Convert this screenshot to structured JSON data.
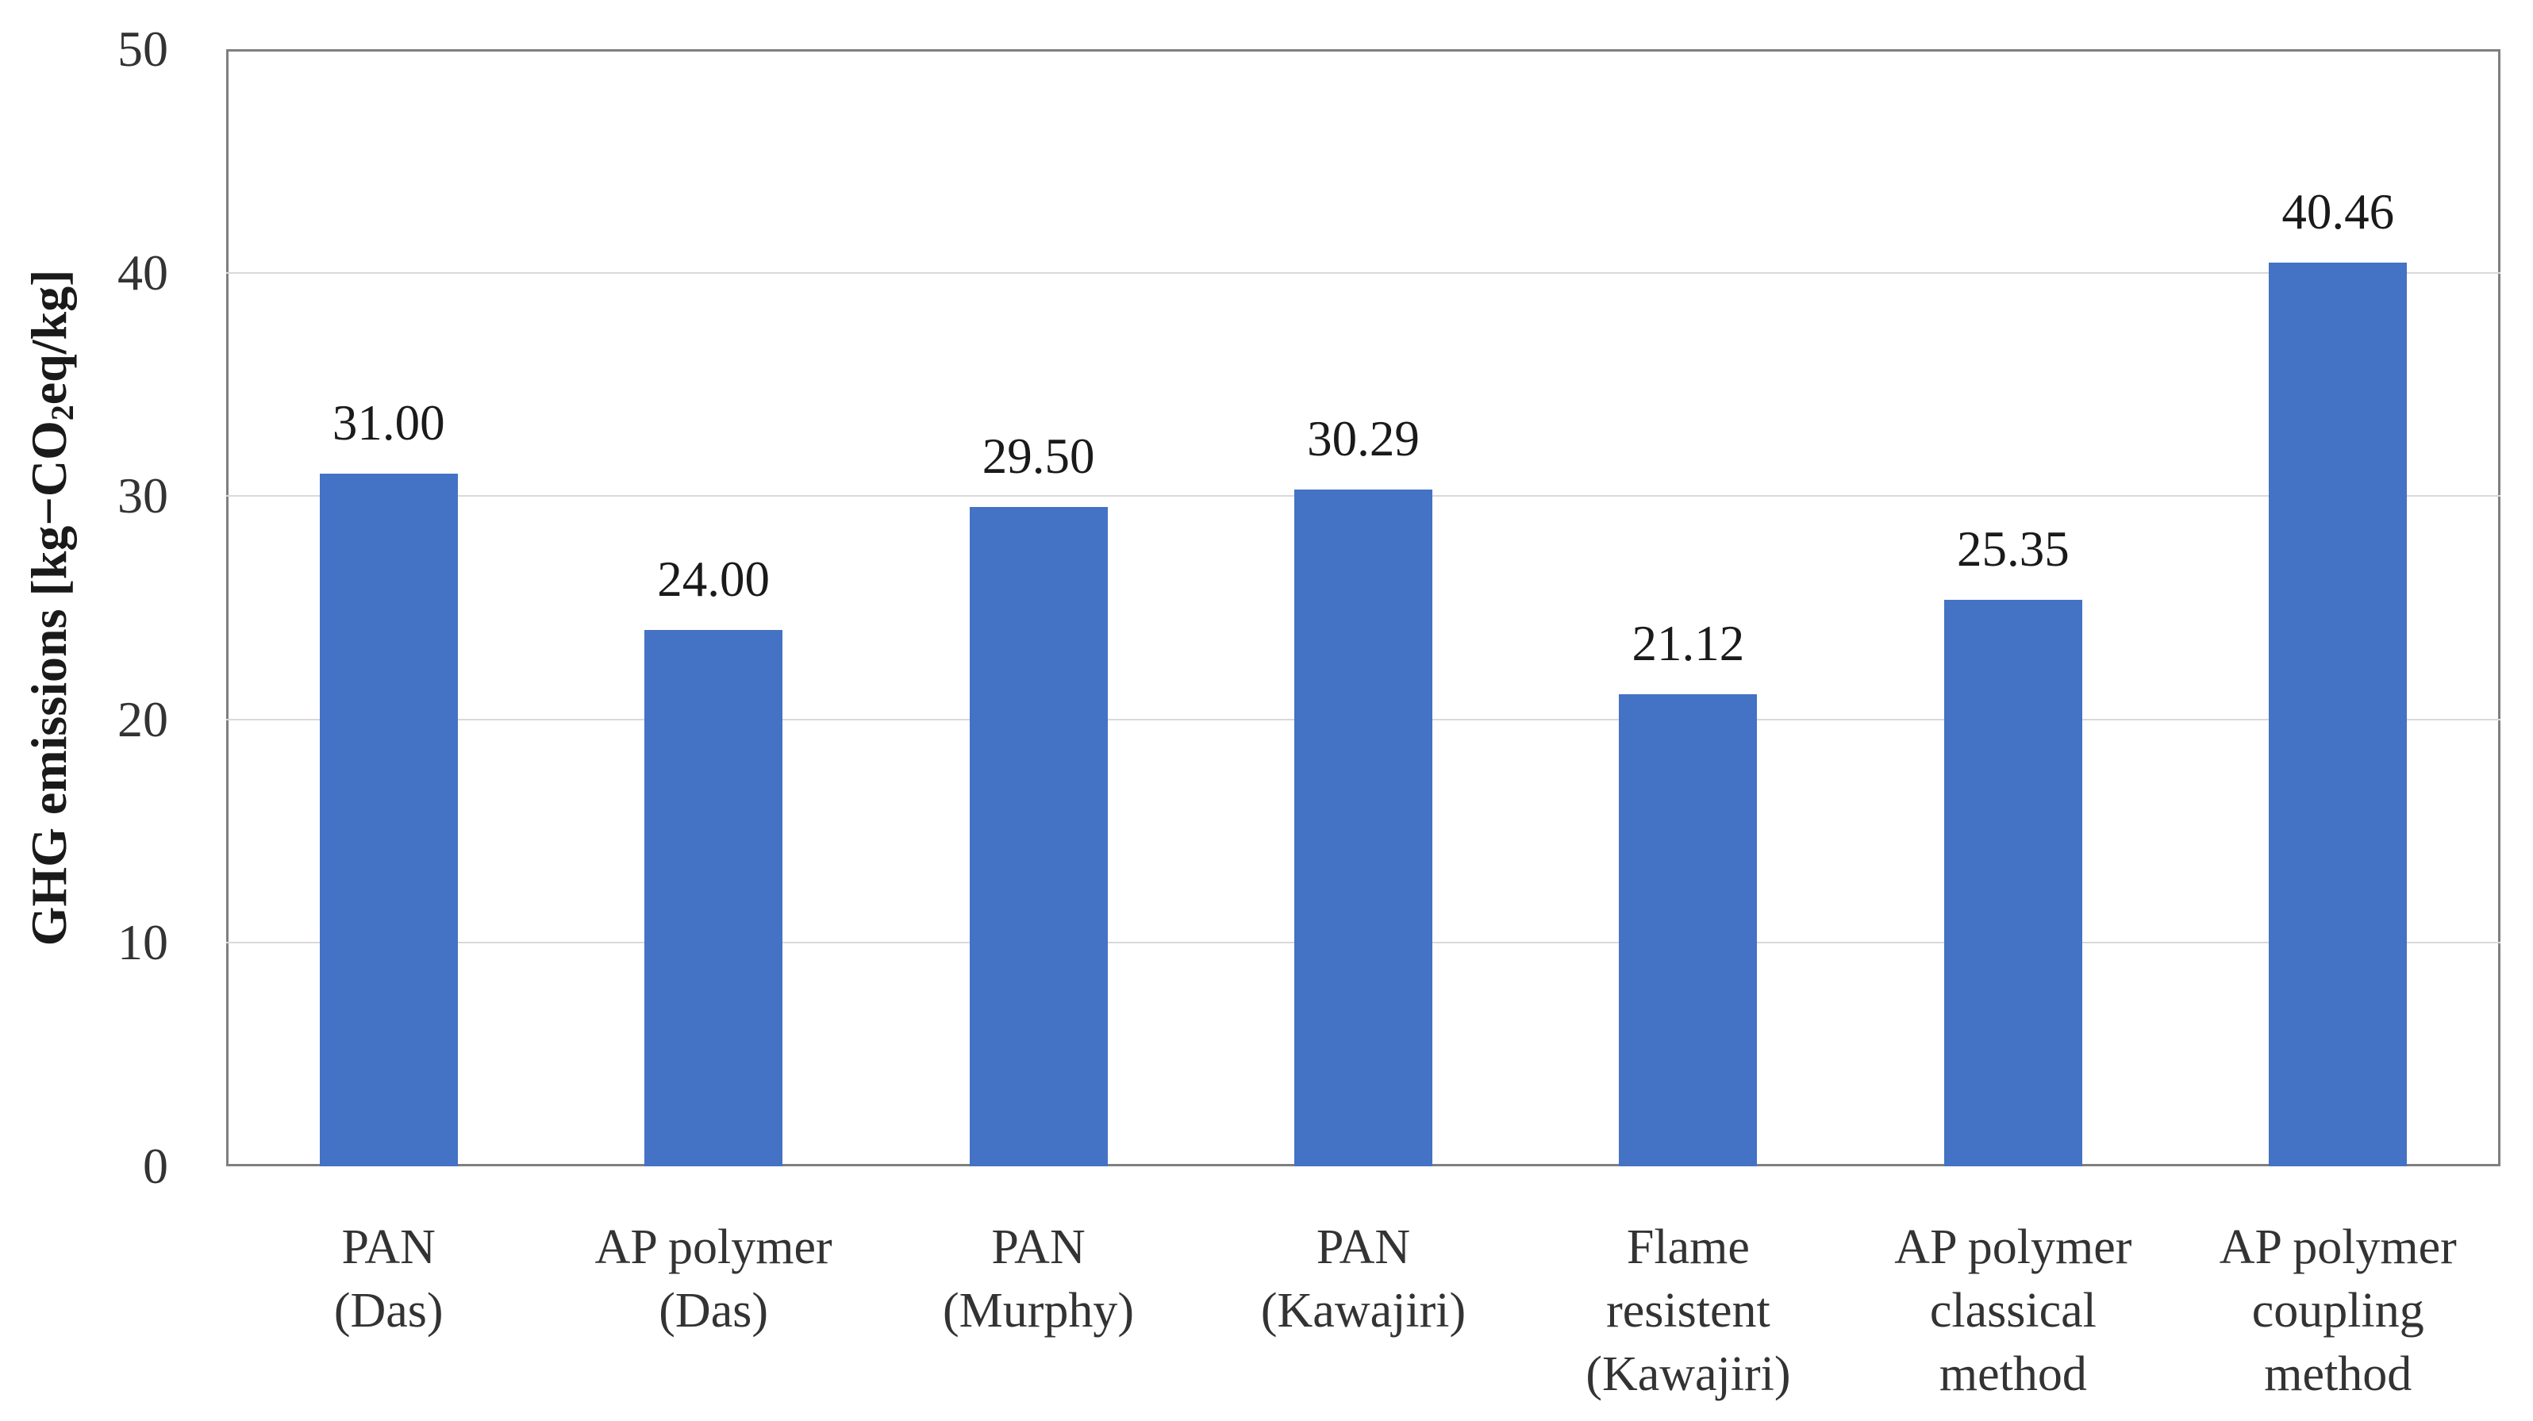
{
  "chart_data": {
    "type": "bar",
    "title": "",
    "xlabel": "",
    "ylabel_parts": [
      {
        "text": "GHG emissions [kg−CO"
      },
      {
        "text": "2",
        "subscript": true
      },
      {
        "text": "eq/kg]"
      }
    ],
    "categories": [
      {
        "id": "pan-das",
        "lines": [
          "PAN",
          "(Das)"
        ]
      },
      {
        "id": "ap-polymer-das",
        "lines": [
          "AP polymer",
          "(Das)"
        ]
      },
      {
        "id": "pan-murphy",
        "lines": [
          "PAN",
          "(Murphy)"
        ]
      },
      {
        "id": "pan-kawajiri",
        "lines": [
          "PAN",
          "(Kawajiri)"
        ]
      },
      {
        "id": "flame-resistent-kawajiri",
        "lines": [
          "Flame",
          "resistent",
          "(Kawajiri)"
        ]
      },
      {
        "id": "ap-polymer-classical-method",
        "lines": [
          "AP polymer",
          "classical",
          "method"
        ]
      },
      {
        "id": "ap-polymer-coupling-method",
        "lines": [
          "AP polymer",
          "coupling",
          "method"
        ]
      }
    ],
    "values": [
      31.0,
      24.0,
      29.5,
      30.29,
      21.12,
      25.35,
      40.46
    ],
    "value_labels": [
      "31.00",
      "24.00",
      "29.50",
      "30.29",
      "21.12",
      "25.35",
      "40.46"
    ],
    "ylim": [
      0,
      50
    ],
    "yticks": [
      0,
      10,
      20,
      30,
      40,
      50
    ],
    "grid": true,
    "legend": "none",
    "colors": {
      "bar": "#4472C4",
      "frame": "#7F7F7F",
      "gridline": "#D9D9D9",
      "tick_text": "#333333",
      "value_text": "#1a1a1a"
    }
  }
}
